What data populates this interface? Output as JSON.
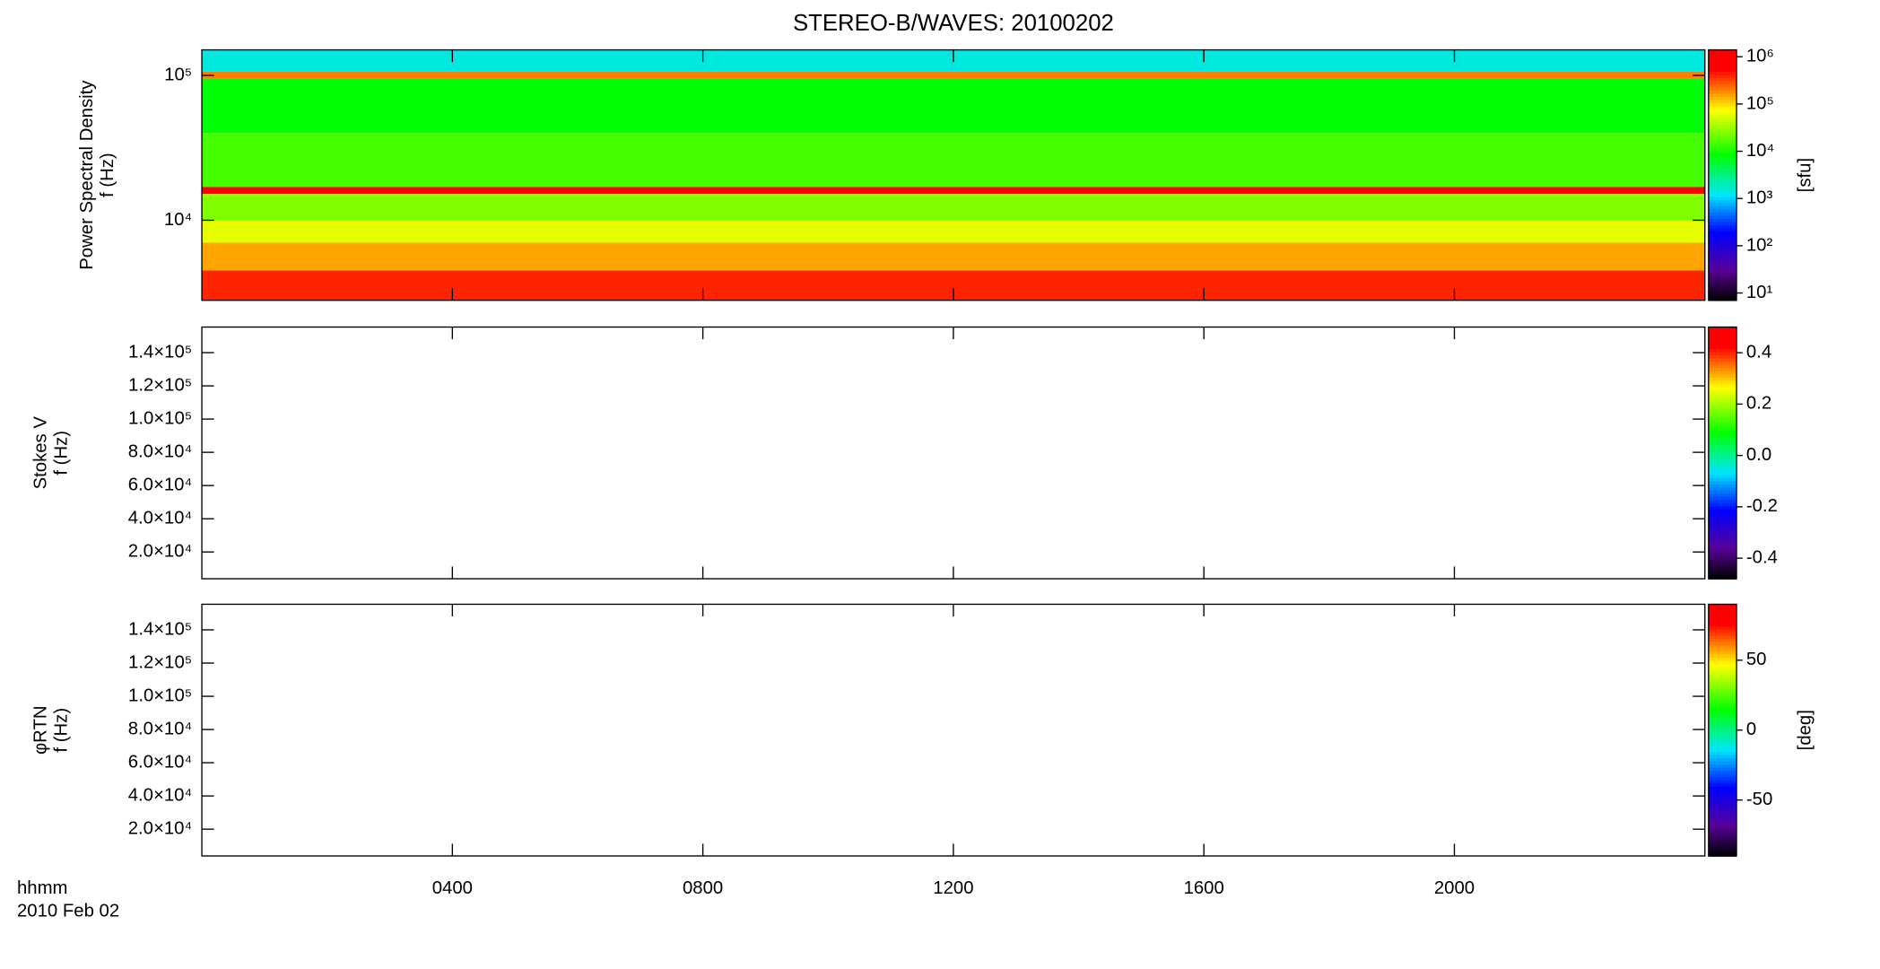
{
  "chart_data": [
    {
      "type": "spectrogram",
      "title": "STEREO-B/WAVES: 20100202",
      "ylabel": [
        "Power Spectral Density",
        "f (Hz)"
      ],
      "log": true,
      "ylim": [
        2800,
        150000
      ],
      "yticks": [
        {
          "value": 10000,
          "label": "10⁴"
        },
        {
          "value": 100000,
          "label": "10⁵"
        }
      ],
      "frequency_edges": [
        2800,
        4500,
        7000,
        10000,
        14500,
        15200,
        17000,
        40000,
        95000,
        106000,
        150000
      ],
      "psd": [
        400000,
        150000,
        60000,
        25000,
        30000,
        1000000,
        15000,
        8000,
        200000,
        1500
      ],
      "colorbar": {
        "log": true,
        "clim": [
          7,
          1400000
        ],
        "label": "[sfu]",
        "ticks": [
          {
            "value": 10,
            "label": "10¹"
          },
          {
            "value": 100,
            "label": "10²"
          },
          {
            "value": 1000,
            "label": "10³"
          },
          {
            "value": 10000,
            "label": "10⁴"
          },
          {
            "value": 100000,
            "label": "10⁵"
          },
          {
            "value": 1000000,
            "label": "10⁶"
          }
        ]
      }
    },
    {
      "type": "spectrogram",
      "ylabel": [
        "Stokes V",
        "f (Hz)"
      ],
      "ylim": [
        3900,
        155400
      ],
      "yticks": [
        {
          "value": 20000,
          "label": "2.0×10⁴"
        },
        {
          "value": 40000,
          "label": "4.0×10⁴"
        },
        {
          "value": 60000,
          "label": "6.0×10⁴"
        },
        {
          "value": 80000,
          "label": "8.0×10⁴"
        },
        {
          "value": 100000,
          "label": "1.0×10⁵"
        },
        {
          "value": 120000,
          "label": "1.2×10⁵"
        },
        {
          "value": 140000,
          "label": "1.4×10⁵"
        }
      ],
      "colorbar": {
        "clim": [
          -0.48,
          0.5
        ],
        "ticks": [
          -0.4,
          -0.2,
          {
            "value": 0,
            "label": "0.0"
          },
          0.2,
          0.4
        ]
      }
    },
    {
      "type": "spectrogram",
      "ylabel": [
        "φRTN",
        "f (Hz)"
      ],
      "ylim": [
        3900,
        155400
      ],
      "yticks": [
        {
          "value": 20000,
          "label": "2.0×10⁴"
        },
        {
          "value": 40000,
          "label": "4.0×10⁴"
        },
        {
          "value": 60000,
          "label": "6.0×10⁴"
        },
        {
          "value": 80000,
          "label": "8.0×10⁴"
        },
        {
          "value": 100000,
          "label": "1.0×10⁵"
        },
        {
          "value": 120000,
          "label": "1.2×10⁵"
        },
        {
          "value": 140000,
          "label": "1.4×10⁵"
        }
      ],
      "colorbar": {
        "clim": [
          -90,
          90
        ],
        "label": "[deg]",
        "ticks": [
          -50,
          0,
          50
        ]
      },
      "xlabel": "hhmm",
      "date": "2010 Feb 02",
      "xlim": [
        0,
        24
      ],
      "xticks": [
        {
          "value": 4,
          "label": "0400"
        },
        {
          "value": 8,
          "label": "0800"
        },
        {
          "value": 12,
          "label": "1200"
        },
        {
          "value": 16,
          "label": "1600"
        },
        {
          "value": 20,
          "label": "2000"
        }
      ]
    }
  ]
}
